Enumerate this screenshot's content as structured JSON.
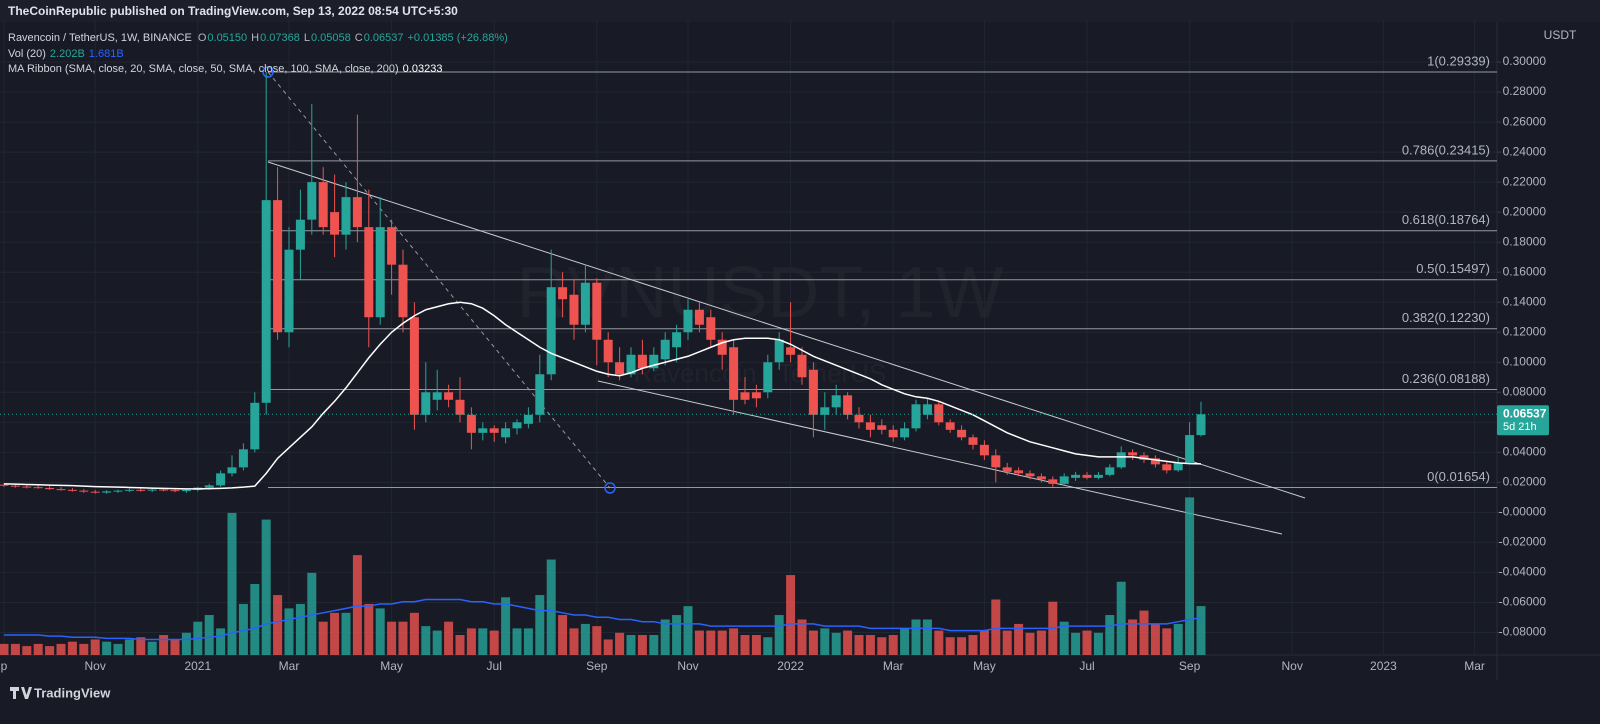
{
  "header": {
    "text": "TheCoinRepublic published on TradingView.com, Sep 13, 2022 08:54 UTC+5:30"
  },
  "footer": {
    "brand": "TradingView"
  },
  "chart_data": {
    "type": "candlestick",
    "legend": {
      "symbol": "Ravencoin / TetherUS, 1W, BINANCE",
      "fields": [
        {
          "key": "O",
          "value": "0.05150"
        },
        {
          "key": "H",
          "value": "0.07368"
        },
        {
          "key": "L",
          "value": "0.05058"
        },
        {
          "key": "C",
          "value": "0.06537"
        }
      ],
      "change": "+0.01385 (+26.88%)"
    },
    "volume_legend": {
      "name": "Vol (20)",
      "values": [
        "2.202B",
        "1.681B"
      ]
    },
    "ma_legend": {
      "name": "MA Ribbon (SMA, close, 20, SMA, close, 50, SMA, close, 100, SMA, close, 200)",
      "value": "0.03233"
    },
    "watermark": "RVNUSDT, 1W",
    "watermark_sub": "Ravencoin / TetherUS",
    "currency": "USDT",
    "last_price_label": "0.06537",
    "countdown": "5d 21h",
    "colors": {
      "up": "#26a69a",
      "down": "#ef5350",
      "ma": "#ffffff",
      "volume_ma": "#2962ff",
      "fib": "#9598a1"
    },
    "grid": true,
    "ylim": [
      -0.095,
      0.328
    ],
    "yticks": [
      {
        "value": 0.3,
        "label": "0.30000"
      },
      {
        "value": 0.28,
        "label": "0.28000"
      },
      {
        "value": 0.26,
        "label": "0.26000"
      },
      {
        "value": 0.24,
        "label": "0.24000"
      },
      {
        "value": 0.22,
        "label": "0.22000"
      },
      {
        "value": 0.2,
        "label": "0.20000"
      },
      {
        "value": 0.18,
        "label": "0.18000"
      },
      {
        "value": 0.16,
        "label": "0.16000"
      },
      {
        "value": 0.14,
        "label": "0.14000"
      },
      {
        "value": 0.12,
        "label": "0.12000"
      },
      {
        "value": 0.1,
        "label": "0.10000"
      },
      {
        "value": 0.08,
        "label": "0.08000"
      },
      {
        "value": 0.06,
        "label": "0.06000"
      },
      {
        "value": 0.04,
        "label": "0.04000"
      },
      {
        "value": 0.02,
        "label": "0.02000"
      },
      {
        "value": 0,
        "label": "-0.00000"
      },
      {
        "value": -0.02,
        "label": "-0.02000"
      },
      {
        "value": -0.04,
        "label": "-0.04000"
      },
      {
        "value": -0.06,
        "label": "-0.06000"
      },
      {
        "value": -0.08,
        "label": "-0.08000"
      }
    ],
    "fib_levels": [
      {
        "value": 0.29339,
        "label": "1(0.29339)"
      },
      {
        "value": 0.23415,
        "label": "0.786(0.23415)"
      },
      {
        "value": 0.18764,
        "label": "0.618(0.18764)"
      },
      {
        "value": 0.15497,
        "label": "0.5(0.15497)"
      },
      {
        "value": 0.1223,
        "label": "0.382(0.12230)"
      },
      {
        "value": 0.08188,
        "label": "0.236(0.08188)"
      },
      {
        "value": 0.01654,
        "label": "0(0.01654)"
      }
    ],
    "categories": [
      "p",
      null,
      null,
      null,
      null,
      null,
      null,
      null,
      "Nov",
      null,
      null,
      null,
      null,
      null,
      null,
      null,
      null,
      "2021",
      null,
      null,
      null,
      null,
      null,
      null,
      null,
      "Mar",
      null,
      null,
      null,
      null,
      null,
      null,
      null,
      null,
      "May",
      null,
      null,
      null,
      null,
      null,
      null,
      null,
      null,
      "Jul",
      null,
      null,
      null,
      null,
      null,
      null,
      null,
      null,
      "Sep",
      null,
      null,
      null,
      null,
      null,
      null,
      null,
      "Nov",
      null,
      null,
      null,
      null,
      null,
      null,
      null,
      null,
      "2022",
      null,
      null,
      null,
      null,
      null,
      null,
      null,
      null,
      "Mar",
      null,
      null,
      null,
      null,
      null,
      null,
      null,
      "May",
      null,
      null,
      null,
      null,
      null,
      null,
      null,
      null,
      "Jul",
      null,
      null,
      null,
      null,
      null,
      null,
      null,
      null,
      "Sep",
      null,
      null,
      null,
      null,
      null,
      null,
      null,
      null,
      "Nov",
      null,
      null,
      null,
      null,
      null,
      null,
      null,
      "2023",
      null,
      null,
      null,
      null,
      null,
      null,
      null,
      "Mar",
      null
    ],
    "ohlc": [
      [
        0.0185,
        0.0195,
        0.017,
        0.0178
      ],
      [
        0.0178,
        0.019,
        0.0165,
        0.0172
      ],
      [
        0.0172,
        0.0185,
        0.016,
        0.0168
      ],
      [
        0.0168,
        0.018,
        0.0158,
        0.0163
      ],
      [
        0.0163,
        0.0175,
        0.015,
        0.0155
      ],
      [
        0.0155,
        0.0168,
        0.0145,
        0.015
      ],
      [
        0.015,
        0.0162,
        0.0138,
        0.0145
      ],
      [
        0.0145,
        0.0155,
        0.013,
        0.0138
      ],
      [
        0.0138,
        0.015,
        0.0125,
        0.0132
      ],
      [
        0.0132,
        0.0148,
        0.0125,
        0.014
      ],
      [
        0.014,
        0.0152,
        0.013,
        0.0145
      ],
      [
        0.0145,
        0.0158,
        0.0135,
        0.015
      ],
      [
        0.015,
        0.0162,
        0.0138,
        0.0145
      ],
      [
        0.0145,
        0.016,
        0.0135,
        0.0152
      ],
      [
        0.0152,
        0.0165,
        0.014,
        0.0148
      ],
      [
        0.0148,
        0.016,
        0.0135,
        0.0142
      ],
      [
        0.0142,
        0.0158,
        0.013,
        0.015
      ],
      [
        0.015,
        0.017,
        0.014,
        0.0165
      ],
      [
        0.0165,
        0.019,
        0.015,
        0.018
      ],
      [
        0.018,
        0.028,
        0.017,
        0.026
      ],
      [
        0.026,
        0.038,
        0.024,
        0.03
      ],
      [
        0.03,
        0.046,
        0.028,
        0.042
      ],
      [
        0.042,
        0.08,
        0.04,
        0.073
      ],
      [
        0.073,
        0.2934,
        0.065,
        0.208
      ],
      [
        0.208,
        0.23,
        0.115,
        0.12
      ],
      [
        0.12,
        0.19,
        0.11,
        0.175
      ],
      [
        0.175,
        0.215,
        0.155,
        0.195
      ],
      [
        0.195,
        0.272,
        0.185,
        0.22
      ],
      [
        0.22,
        0.23,
        0.185,
        0.19
      ],
      [
        0.2,
        0.225,
        0.17,
        0.185
      ],
      [
        0.185,
        0.22,
        0.175,
        0.21
      ],
      [
        0.21,
        0.265,
        0.18,
        0.19
      ],
      [
        0.19,
        0.215,
        0.11,
        0.13
      ],
      [
        0.13,
        0.21,
        0.125,
        0.19
      ],
      [
        0.19,
        0.195,
        0.145,
        0.165
      ],
      [
        0.165,
        0.175,
        0.12,
        0.13
      ],
      [
        0.13,
        0.14,
        0.055,
        0.065
      ],
      [
        0.065,
        0.1,
        0.06,
        0.08
      ],
      [
        0.075,
        0.095,
        0.068,
        0.08
      ],
      [
        0.08,
        0.085,
        0.07,
        0.075
      ],
      [
        0.075,
        0.09,
        0.06,
        0.065
      ],
      [
        0.065,
        0.07,
        0.042,
        0.053
      ],
      [
        0.053,
        0.06,
        0.048,
        0.056
      ],
      [
        0.056,
        0.058,
        0.047,
        0.053
      ],
      [
        0.05,
        0.06,
        0.046,
        0.056
      ],
      [
        0.056,
        0.062,
        0.052,
        0.06
      ],
      [
        0.059,
        0.07,
        0.056,
        0.065
      ],
      [
        0.065,
        0.105,
        0.06,
        0.092
      ],
      [
        0.092,
        0.175,
        0.088,
        0.15
      ],
      [
        0.15,
        0.16,
        0.13,
        0.142
      ],
      [
        0.145,
        0.155,
        0.115,
        0.125
      ],
      [
        0.125,
        0.165,
        0.12,
        0.153
      ],
      [
        0.153,
        0.156,
        0.098,
        0.115
      ],
      [
        0.115,
        0.12,
        0.09,
        0.1
      ],
      [
        0.1,
        0.11,
        0.088,
        0.092
      ],
      [
        0.092,
        0.11,
        0.09,
        0.105
      ],
      [
        0.105,
        0.115,
        0.092,
        0.096
      ],
      [
        0.096,
        0.11,
        0.094,
        0.105
      ],
      [
        0.102,
        0.12,
        0.098,
        0.115
      ],
      [
        0.11,
        0.125,
        0.1,
        0.12
      ],
      [
        0.12,
        0.142,
        0.115,
        0.135
      ],
      [
        0.135,
        0.14,
        0.12,
        0.125
      ],
      [
        0.13,
        0.135,
        0.11,
        0.115
      ],
      [
        0.115,
        0.12,
        0.095,
        0.105
      ],
      [
        0.11,
        0.115,
        0.065,
        0.075
      ],
      [
        0.08,
        0.09,
        0.072,
        0.075
      ],
      [
        0.08,
        0.085,
        0.07,
        0.076
      ],
      [
        0.08,
        0.105,
        0.076,
        0.1
      ],
      [
        0.1,
        0.12,
        0.095,
        0.115
      ],
      [
        0.11,
        0.14,
        0.1,
        0.105
      ],
      [
        0.105,
        0.11,
        0.085,
        0.09
      ],
      [
        0.095,
        0.1,
        0.05,
        0.065
      ],
      [
        0.065,
        0.08,
        0.055,
        0.07
      ],
      [
        0.07,
        0.085,
        0.065,
        0.078
      ],
      [
        0.078,
        0.08,
        0.062,
        0.065
      ],
      [
        0.065,
        0.07,
        0.056,
        0.06
      ],
      [
        0.06,
        0.065,
        0.05,
        0.055
      ],
      [
        0.058,
        0.062,
        0.052,
        0.055
      ],
      [
        0.055,
        0.058,
        0.047,
        0.05
      ],
      [
        0.05,
        0.06,
        0.048,
        0.056
      ],
      [
        0.056,
        0.075,
        0.054,
        0.072
      ],
      [
        0.065,
        0.076,
        0.062,
        0.072
      ],
      [
        0.072,
        0.074,
        0.058,
        0.06
      ],
      [
        0.06,
        0.062,
        0.053,
        0.055
      ],
      [
        0.055,
        0.058,
        0.048,
        0.05
      ],
      [
        0.05,
        0.052,
        0.042,
        0.045
      ],
      [
        0.045,
        0.048,
        0.035,
        0.038
      ],
      [
        0.038,
        0.042,
        0.02,
        0.03
      ],
      [
        0.03,
        0.033,
        0.025,
        0.027
      ],
      [
        0.028,
        0.03,
        0.024,
        0.026
      ],
      [
        0.026,
        0.028,
        0.022,
        0.024
      ],
      [
        0.024,
        0.026,
        0.02,
        0.022
      ],
      [
        0.022,
        0.024,
        0.017,
        0.019
      ],
      [
        0.019,
        0.026,
        0.018,
        0.024
      ],
      [
        0.023,
        0.027,
        0.021,
        0.025
      ],
      [
        0.025,
        0.027,
        0.022,
        0.023
      ],
      [
        0.023,
        0.027,
        0.022,
        0.025
      ],
      [
        0.025,
        0.032,
        0.024,
        0.03
      ],
      [
        0.03,
        0.044,
        0.029,
        0.04
      ],
      [
        0.04,
        0.042,
        0.035,
        0.038
      ],
      [
        0.038,
        0.04,
        0.033,
        0.035
      ],
      [
        0.036,
        0.038,
        0.03,
        0.032
      ],
      [
        0.032,
        0.034,
        0.026,
        0.028
      ],
      [
        0.028,
        0.037,
        0.027,
        0.033
      ],
      [
        0.033,
        0.06,
        0.032,
        0.0515
      ],
      [
        0.0515,
        0.07368,
        0.05058,
        0.06537
      ],
      null,
      null,
      null,
      null,
      null,
      null,
      null,
      null,
      null,
      null,
      null,
      null,
      null,
      null,
      null,
      null,
      null,
      null,
      null,
      null,
      null,
      null,
      null,
      null,
      null
    ],
    "volume": [
      0.5,
      0.5,
      0.4,
      0.5,
      0.4,
      0.5,
      0.6,
      0.5,
      0.7,
      0.6,
      0.5,
      0.7,
      0.8,
      0.6,
      0.9,
      0.7,
      1.0,
      1.5,
      1.8,
      1.2,
      6.4,
      2.3,
      3.2,
      6.1,
      2.7,
      2.1,
      2.3,
      3.7,
      1.5,
      1.9,
      1.9,
      4.5,
      2.3,
      2.1,
      1.5,
      1.5,
      1.9,
      1.3,
      1.1,
      1.5,
      0.9,
      1.2,
      1.2,
      1.1,
      2.6,
      1.2,
      1.2,
      2.7,
      4.3,
      1.8,
      1.2,
      1.4,
      1.3,
      0.7,
      1.0,
      0.9,
      0.9,
      0.9,
      1.6,
      1.8,
      2.2,
      1.1,
      1.1,
      1.1,
      1.2,
      0.9,
      0.9,
      0.8,
      1.8,
      3.6,
      1.6,
      1.1,
      1.2,
      1.0,
      1.1,
      0.9,
      0.9,
      0.8,
      0.9,
      1.2,
      1.6,
      1.6,
      1.1,
      0.8,
      0.8,
      0.9,
      1.1,
      2.5,
      1.1,
      1.4,
      1.0,
      1.1,
      2.4,
      1.5,
      1.0,
      1.1,
      1.0,
      1.8,
      3.3,
      1.6,
      2.0,
      1.4,
      1.2,
      1.4,
      7.1,
      2.202,
      null,
      null,
      null,
      null,
      null,
      null,
      null,
      null,
      null,
      null,
      null,
      null,
      null,
      null,
      null,
      null,
      null,
      null,
      null,
      null,
      null,
      null,
      null,
      null,
      null
    ],
    "volume_ma": [
      0.9,
      0.9,
      0.9,
      0.9,
      0.85,
      0.85,
      0.8,
      0.8,
      0.8,
      0.75,
      0.75,
      0.75,
      0.7,
      0.7,
      0.7,
      0.7,
      0.7,
      0.75,
      0.8,
      0.85,
      1.0,
      1.1,
      1.2,
      1.4,
      1.5,
      1.6,
      1.7,
      1.8,
      1.9,
      2.0,
      2.1,
      2.2,
      2.2,
      2.3,
      2.3,
      2.4,
      2.4,
      2.5,
      2.5,
      2.5,
      2.5,
      2.4,
      2.4,
      2.3,
      2.3,
      2.2,
      2.1,
      2.0,
      2.0,
      1.9,
      1.8,
      1.8,
      1.7,
      1.7,
      1.6,
      1.6,
      1.5,
      1.5,
      1.4,
      1.4,
      1.4,
      1.4,
      1.3,
      1.3,
      1.3,
      1.3,
      1.3,
      1.3,
      1.3,
      1.4,
      1.4,
      1.4,
      1.3,
      1.3,
      1.3,
      1.3,
      1.2,
      1.2,
      1.2,
      1.2,
      1.2,
      1.2,
      1.2,
      1.1,
      1.1,
      1.1,
      1.1,
      1.2,
      1.2,
      1.2,
      1.2,
      1.2,
      1.2,
      1.3,
      1.3,
      1.3,
      1.3,
      1.3,
      1.4,
      1.4,
      1.4,
      1.4,
      1.4,
      1.5,
      1.6,
      1.681,
      null,
      null,
      null,
      null,
      null,
      null,
      null,
      null,
      null,
      null,
      null,
      null,
      null,
      null,
      null,
      null,
      null,
      null,
      null,
      null,
      null,
      null,
      null,
      null,
      null
    ],
    "ma20": [
      0.019,
      0.0188,
      0.0186,
      0.0184,
      0.0182,
      0.018,
      0.0178,
      0.0175,
      0.0172,
      0.017,
      0.0168,
      0.0166,
      0.0164,
      0.0162,
      0.016,
      0.0158,
      0.0157,
      0.0157,
      0.0158,
      0.016,
      0.0163,
      0.0168,
      0.0175,
      0.026,
      0.036,
      0.043,
      0.05,
      0.057,
      0.066,
      0.074,
      0.083,
      0.093,
      0.103,
      0.112,
      0.12,
      0.126,
      0.131,
      0.135,
      0.137,
      0.139,
      0.14,
      0.139,
      0.136,
      0.131,
      0.125,
      0.12,
      0.115,
      0.11,
      0.106,
      0.103,
      0.1,
      0.097,
      0.094,
      0.092,
      0.091,
      0.093,
      0.096,
      0.098,
      0.1,
      0.102,
      0.104,
      0.107,
      0.11,
      0.113,
      0.115,
      0.116,
      0.116,
      0.116,
      0.115,
      0.112,
      0.108,
      0.104,
      0.101,
      0.098,
      0.095,
      0.092,
      0.089,
      0.085,
      0.082,
      0.079,
      0.077,
      0.076,
      0.074,
      0.071,
      0.068,
      0.065,
      0.061,
      0.057,
      0.053,
      0.05,
      0.047,
      0.045,
      0.043,
      0.041,
      0.039,
      0.038,
      0.037,
      0.037,
      0.037,
      0.037,
      0.036,
      0.035,
      0.034,
      0.033,
      0.0325,
      0.03233,
      null,
      null,
      null,
      null,
      null,
      null,
      null,
      null,
      null,
      null,
      null,
      null,
      null,
      null,
      null,
      null,
      null,
      null,
      null,
      null,
      null,
      null,
      null,
      null,
      null
    ]
  }
}
